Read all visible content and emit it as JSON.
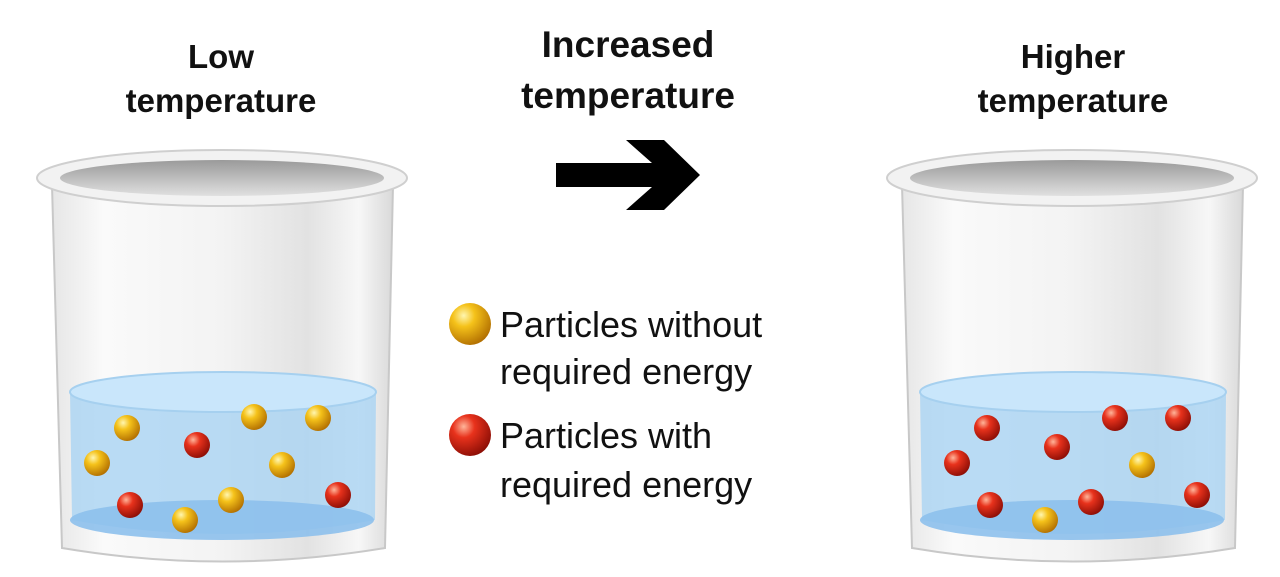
{
  "labels": {
    "left": {
      "lines": [
        "Low",
        "temperature"
      ]
    },
    "middle": {
      "lines": [
        "Increased",
        "temperature"
      ]
    },
    "right": {
      "lines": [
        "Higher",
        "temperature"
      ]
    }
  },
  "legend": [
    {
      "lines": [
        "Particles without",
        "required energy"
      ]
    },
    {
      "lines": [
        "Particles with",
        "required energy"
      ]
    }
  ]
}
